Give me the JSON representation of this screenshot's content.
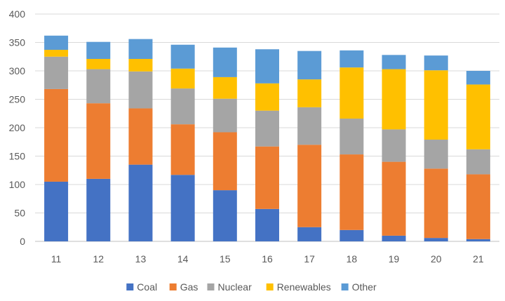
{
  "chart_data": {
    "type": "bar",
    "stacked": true,
    "categories": [
      "11",
      "12",
      "13",
      "14",
      "15",
      "16",
      "17",
      "18",
      "19",
      "20",
      "21"
    ],
    "series": [
      {
        "name": "Coal",
        "color": "#4472C4",
        "values": [
          105,
          110,
          135,
          117,
          90,
          57,
          25,
          20,
          10,
          6,
          4
        ]
      },
      {
        "name": "Gas",
        "color": "#ED7D31",
        "values": [
          163,
          133,
          99,
          89,
          102,
          110,
          145,
          133,
          130,
          122,
          114
        ]
      },
      {
        "name": "Nuclear",
        "color": "#A5A5A5",
        "values": [
          57,
          60,
          65,
          63,
          59,
          63,
          66,
          63,
          57,
          51,
          44
        ]
      },
      {
        "name": "Renewables",
        "color": "#FFC000",
        "values": [
          12,
          18,
          22,
          35,
          38,
          48,
          49,
          90,
          106,
          122,
          114
        ]
      },
      {
        "name": "Other",
        "color": "#5B9BD5",
        "values": [
          25,
          30,
          35,
          42,
          52,
          60,
          50,
          30,
          25,
          26,
          24
        ]
      }
    ],
    "yticks": [
      "0",
      "50",
      "100",
      "150",
      "200",
      "250",
      "300",
      "350",
      "400"
    ],
    "ylim": [
      0,
      400
    ],
    "grid": true,
    "legend": "bottom-center"
  }
}
